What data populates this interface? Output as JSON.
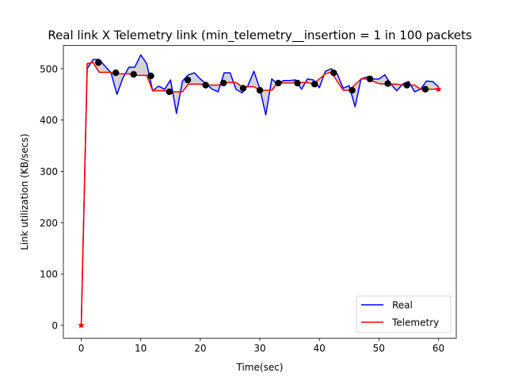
{
  "chart_data": {
    "type": "line",
    "title": "Real link X Telemetry link (min_telemetry__insertion = 1 in 100 packets",
    "xlabel": "Time(sec)",
    "ylabel": "Link utilization (KB/secs)",
    "xlim": [
      -3,
      63
    ],
    "ylim": [
      -25,
      545
    ],
    "xticks": [
      0,
      10,
      20,
      30,
      40,
      50,
      60
    ],
    "yticks": [
      0,
      100,
      200,
      300,
      400,
      500
    ],
    "grid": false,
    "legend_placement": "lower right",
    "series": [
      {
        "name": "Real",
        "color": "#0000ff",
        "x": [
          0,
          1,
          2,
          3,
          4,
          5,
          6,
          7,
          8,
          9,
          10,
          11,
          12,
          13,
          14,
          15,
          16,
          17,
          18,
          19,
          20,
          21,
          22,
          23,
          24,
          25,
          26,
          27,
          28,
          29,
          30,
          31,
          32,
          33,
          34,
          35,
          36,
          37,
          38,
          39,
          40,
          41,
          42,
          43,
          44,
          45,
          46,
          47,
          48,
          49,
          50,
          51,
          52,
          53,
          54,
          55,
          56,
          57,
          58,
          59,
          60
        ],
        "y": [
          0,
          500,
          518,
          518,
          505,
          492,
          450,
          482,
          503,
          503,
          527,
          510,
          457,
          466,
          460,
          478,
          413,
          476,
          488,
          492,
          480,
          470,
          460,
          455,
          492,
          492,
          460,
          453,
          467,
          495,
          461,
          410,
          480,
          470,
          477,
          477,
          478,
          460,
          480,
          478,
          463,
          495,
          500,
          490,
          462,
          467,
          426,
          480,
          484,
          480,
          480,
          488,
          470,
          457,
          470,
          475,
          455,
          460,
          476,
          475,
          465
        ]
      },
      {
        "name": "Telemetry",
        "color": "#ff0000",
        "x": [
          0,
          1,
          2,
          3,
          5,
          6,
          8,
          9,
          11,
          12,
          14,
          15,
          17,
          18,
          20,
          21,
          23,
          24,
          26,
          27,
          29,
          30,
          32,
          33,
          35,
          36,
          38,
          39,
          41,
          42,
          44,
          45,
          47,
          48,
          50,
          51,
          53,
          54,
          56,
          57,
          60
        ],
        "y": [
          0,
          510,
          512,
          493,
          493,
          490,
          490,
          487,
          487,
          457,
          457,
          455,
          455,
          470,
          470,
          468,
          468,
          473,
          473,
          465,
          465,
          458,
          458,
          472,
          472,
          473,
          473,
          470,
          490,
          493,
          458,
          458,
          480,
          480,
          471,
          470,
          470,
          468,
          468,
          460,
          460
        ]
      }
    ],
    "sample_points": {
      "x": [
        2.9,
        5.8,
        8.8,
        11.7,
        14.8,
        17.9,
        20.9,
        23.9,
        27.2,
        30.0,
        33.1,
        36.3,
        39.2,
        42.4,
        45.5,
        48.5,
        51.5,
        54.7,
        57.8
      ],
      "y": [
        512,
        492,
        489,
        486,
        455,
        478,
        468,
        472,
        462,
        458,
        472,
        472,
        470,
        492,
        458,
        480,
        471,
        468,
        460
      ]
    },
    "end_markers": {
      "x": [
        0,
        60
      ],
      "y": [
        0,
        460
      ]
    }
  }
}
